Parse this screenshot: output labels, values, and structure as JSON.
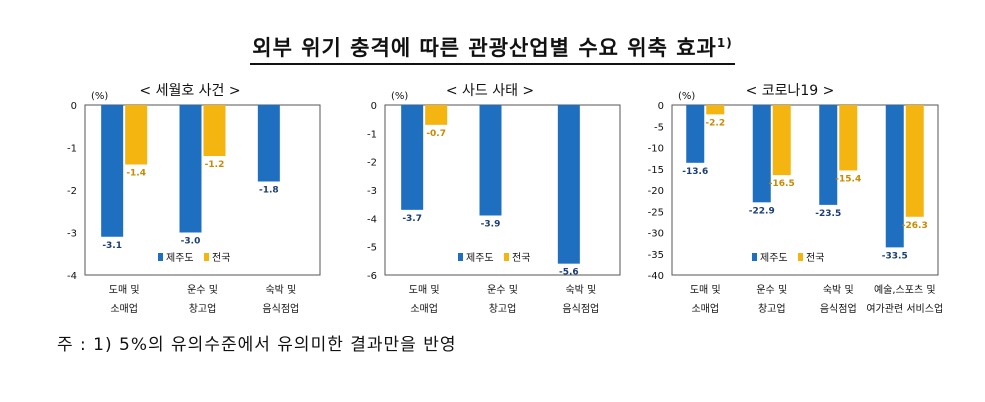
{
  "title": "외부 위기 충격에 따른 관광산업별 수요 위축 효과",
  "title_sup": "1)",
  "footnote": "주 : 1) 5%의 유의수준에서 유의미한 결과만을 반영",
  "colors": {
    "jeju": "#1f6fc1",
    "national": "#f5b510",
    "frame": "#555555"
  },
  "chart_data": [
    {
      "type": "bar",
      "title": "< 세월호 사건 >",
      "unit": "(%)",
      "ylim": [
        -4,
        0
      ],
      "yticks": [
        "0",
        "-1",
        "-2",
        "-3",
        "-4"
      ],
      "categories": [
        [
          "도매 및",
          "소매업"
        ],
        [
          "운수 및",
          "창고업"
        ],
        [
          "숙박 및",
          "음식점업"
        ]
      ],
      "series": [
        {
          "name": "제주도",
          "values": [
            -3.1,
            -3.0,
            -1.8
          ]
        },
        {
          "name": "전국",
          "values": [
            -1.4,
            -1.2,
            null
          ]
        }
      ],
      "labels": {
        "제주도": [
          "-3.1",
          "-3.0",
          "-1.8"
        ],
        "전국": [
          "-1.4",
          "-1.2",
          ""
        ]
      },
      "legend": [
        "제주도",
        "전국"
      ]
    },
    {
      "type": "bar",
      "title": "< 사드 사태 >",
      "unit": "(%)",
      "ylim": [
        -6,
        0
      ],
      "yticks": [
        "0",
        "-1",
        "-2",
        "-3",
        "-4",
        "-5",
        "-6"
      ],
      "categories": [
        [
          "도매 및",
          "소매업"
        ],
        [
          "운수 및",
          "창고업"
        ],
        [
          "숙박 및",
          "음식점업"
        ]
      ],
      "series": [
        {
          "name": "제주도",
          "values": [
            -3.7,
            -3.9,
            -5.6
          ]
        },
        {
          "name": "전국",
          "values": [
            -0.7,
            null,
            null
          ]
        }
      ],
      "labels": {
        "제주도": [
          "-3.7",
          "-3.9",
          "-5.6"
        ],
        "전국": [
          "-0.7",
          "",
          ""
        ]
      },
      "legend": [
        "제주도",
        "전국"
      ]
    },
    {
      "type": "bar",
      "title": "< 코로나19 >",
      "unit": "(%)",
      "ylim": [
        -40,
        0
      ],
      "yticks": [
        "0",
        "-5",
        "-10",
        "-15",
        "-20",
        "-25",
        "-30",
        "-35",
        "-40"
      ],
      "categories": [
        [
          "도매 및",
          "소매업"
        ],
        [
          "운수 및",
          "창고업"
        ],
        [
          "숙박 및",
          "음식점업"
        ],
        [
          "예술,스포츠 및",
          "여가관련 서비스업"
        ]
      ],
      "series": [
        {
          "name": "제주도",
          "values": [
            -13.6,
            -22.9,
            -23.5,
            -33.5
          ]
        },
        {
          "name": "전국",
          "values": [
            -2.2,
            -16.5,
            -15.4,
            -26.3
          ]
        }
      ],
      "labels": {
        "제주도": [
          "-13.6",
          "-22.9",
          "-23.5",
          "-33.5"
        ],
        "전국": [
          "-2.2",
          "-16.5",
          "-15.4",
          "-26.3"
        ]
      },
      "legend": [
        "제주도",
        "전국"
      ]
    }
  ]
}
